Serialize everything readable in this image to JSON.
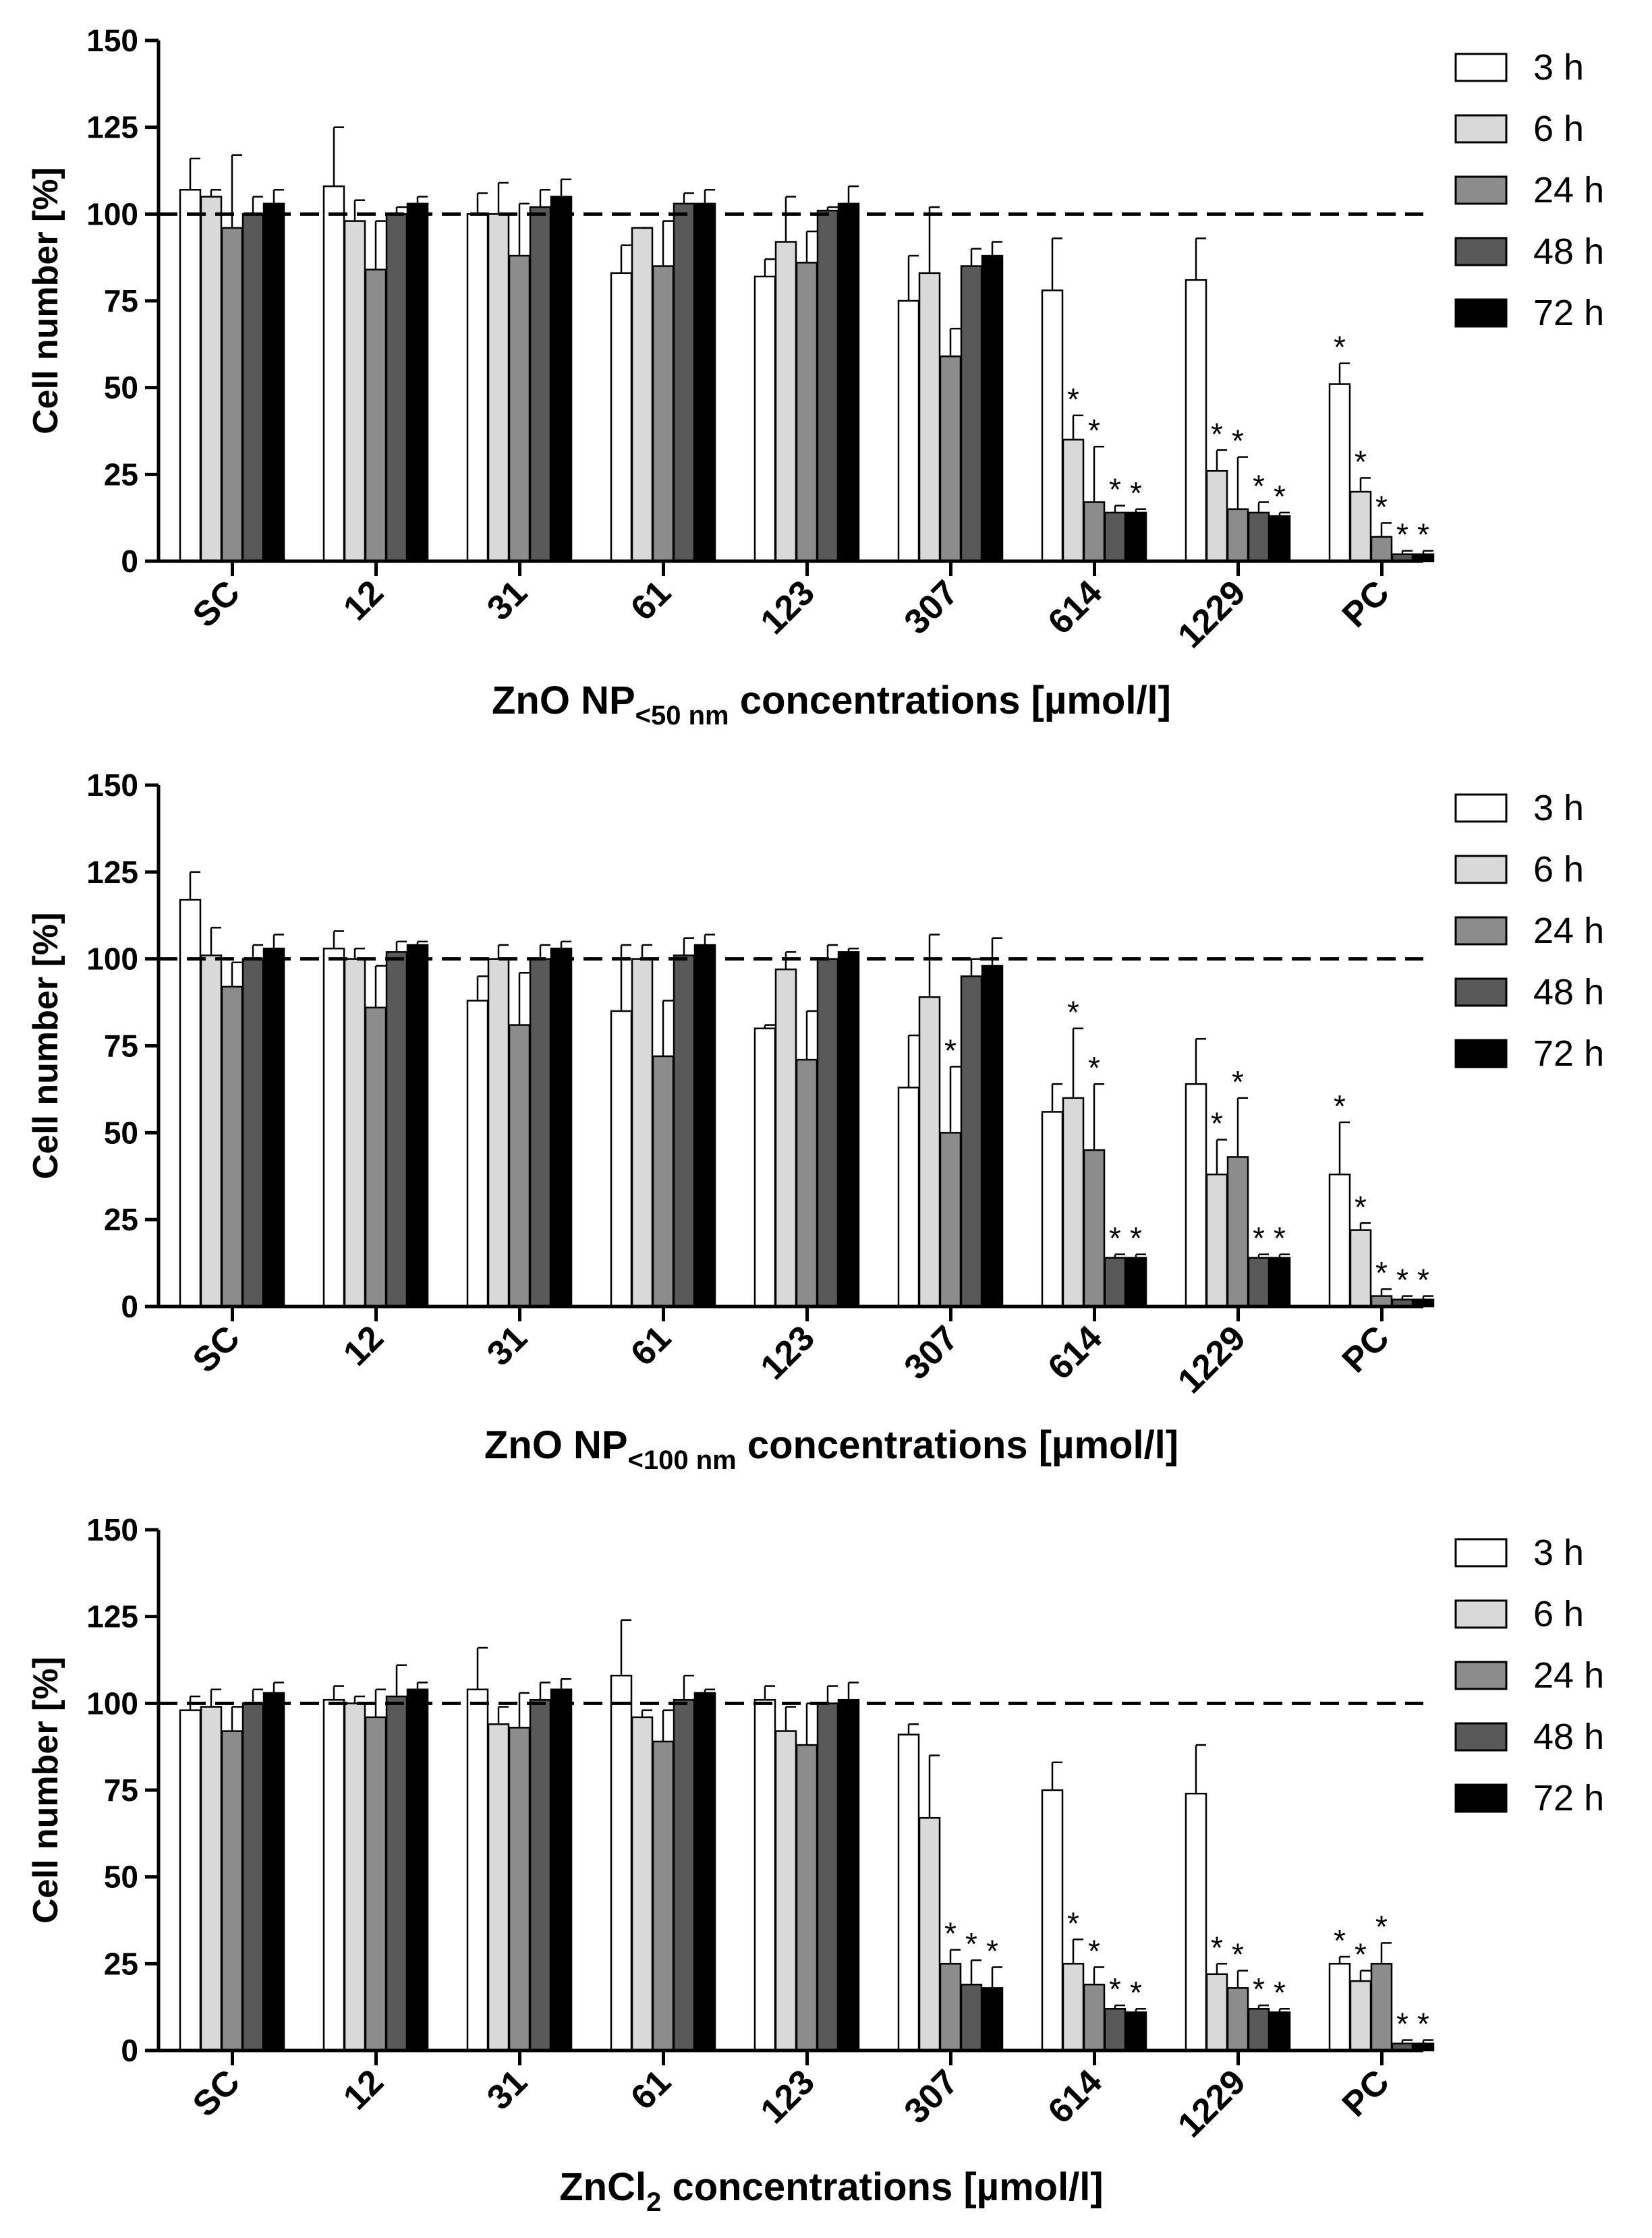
{
  "legend": [
    "3 h",
    "6 h",
    "24 h",
    "48 h",
    "72 h"
  ],
  "colors": [
    "#ffffff",
    "#d9d9d9",
    "#8c8c8c",
    "#595959",
    "#000000"
  ],
  "chart_data": [
    {
      "type": "bar",
      "ylabel": "Cell number [%]",
      "xlabel_main": "ZnO NP",
      "xlabel_sub": "<50 nm",
      "xlabel_rest": " concentrations [µmol/l]",
      "ylim": [
        0,
        150
      ],
      "yticks": [
        "0",
        "25",
        "50",
        "75",
        "100",
        "125",
        "150"
      ],
      "reference_line": 100,
      "categories": [
        "SC",
        "12",
        "31",
        "61",
        "123",
        "307",
        "614",
        "1229",
        "PC"
      ],
      "series": [
        {
          "name": "3 h",
          "values": [
            107,
            108,
            100,
            83,
            82,
            75,
            78,
            81,
            51
          ],
          "errors": [
            9,
            17,
            6,
            8,
            5,
            13,
            15,
            12,
            6
          ],
          "sig": [
            false,
            false,
            false,
            false,
            false,
            false,
            false,
            false,
            true
          ]
        },
        {
          "name": "6 h",
          "values": [
            105,
            98,
            100,
            96,
            92,
            83,
            35,
            26,
            20
          ],
          "errors": [
            2,
            6,
            9,
            0,
            13,
            19,
            7,
            6,
            4
          ],
          "sig": [
            false,
            false,
            false,
            false,
            false,
            false,
            true,
            true,
            true
          ]
        },
        {
          "name": "24 h",
          "values": [
            96,
            84,
            88,
            85,
            86,
            59,
            17,
            15,
            7
          ],
          "errors": [
            21,
            14,
            15,
            13,
            9,
            8,
            16,
            15,
            4
          ],
          "sig": [
            false,
            false,
            false,
            false,
            false,
            false,
            true,
            true,
            true
          ]
        },
        {
          "name": "48 h",
          "values": [
            100,
            100,
            102,
            103,
            101,
            85,
            14,
            14,
            2
          ],
          "errors": [
            5,
            2,
            5,
            3,
            1,
            5,
            2,
            3,
            1
          ],
          "sig": [
            false,
            false,
            false,
            false,
            false,
            false,
            true,
            true,
            true
          ]
        },
        {
          "name": "72 h",
          "values": [
            103,
            103,
            105,
            103,
            103,
            88,
            14,
            13,
            2
          ],
          "errors": [
            4,
            2,
            5,
            4,
            5,
            4,
            1,
            1,
            1
          ],
          "sig": [
            false,
            false,
            false,
            false,
            false,
            false,
            true,
            true,
            true
          ]
        }
      ]
    },
    {
      "type": "bar",
      "ylabel": "Cell number [%]",
      "xlabel_main": "ZnO NP",
      "xlabel_sub": "<100 nm",
      "xlabel_rest": " concentrations [µmol/l]",
      "ylim": [
        0,
        150
      ],
      "yticks": [
        "0",
        "25",
        "50",
        "75",
        "100",
        "125",
        "150"
      ],
      "reference_line": 100,
      "categories": [
        "SC",
        "12",
        "31",
        "61",
        "123",
        "307",
        "614",
        "1229",
        "PC"
      ],
      "series": [
        {
          "name": "3 h",
          "values": [
            117,
            103,
            88,
            85,
            80,
            63,
            56,
            64,
            38
          ],
          "errors": [
            8,
            5,
            7,
            19,
            1,
            15,
            8,
            13,
            15
          ],
          "sig": [
            false,
            false,
            false,
            false,
            false,
            false,
            false,
            false,
            true
          ]
        },
        {
          "name": "6 h",
          "values": [
            101,
            100,
            100,
            100,
            97,
            89,
            60,
            38,
            22
          ],
          "errors": [
            8,
            3,
            4,
            4,
            5,
            18,
            20,
            10,
            2
          ],
          "sig": [
            false,
            false,
            false,
            false,
            false,
            false,
            true,
            true,
            true
          ]
        },
        {
          "name": "24 h",
          "values": [
            92,
            86,
            81,
            72,
            71,
            50,
            45,
            43,
            3
          ],
          "errors": [
            7,
            12,
            15,
            16,
            14,
            19,
            19,
            17,
            2
          ],
          "sig": [
            false,
            false,
            false,
            false,
            false,
            true,
            true,
            true,
            true
          ]
        },
        {
          "name": "48 h",
          "values": [
            100,
            102,
            100,
            101,
            100,
            95,
            14,
            14,
            2
          ],
          "errors": [
            4,
            3,
            4,
            5,
            4,
            5,
            1,
            1,
            1
          ],
          "sig": [
            false,
            false,
            false,
            false,
            false,
            false,
            true,
            true,
            true
          ]
        },
        {
          "name": "72 h",
          "values": [
            103,
            104,
            103,
            104,
            102,
            98,
            14,
            14,
            2
          ],
          "errors": [
            4,
            1,
            2,
            3,
            1,
            8,
            1,
            1,
            1
          ],
          "sig": [
            false,
            false,
            false,
            false,
            false,
            false,
            true,
            true,
            true
          ]
        }
      ]
    },
    {
      "type": "bar",
      "ylabel": "Cell number [%]",
      "xlabel_main": "ZnCl",
      "xlabel_sub": "2",
      "xlabel_rest": " concentrations [µmol/l]",
      "ylim": [
        0,
        150
      ],
      "yticks": [
        "0",
        "25",
        "50",
        "75",
        "100",
        "125",
        "150"
      ],
      "reference_line": 100,
      "categories": [
        "SC",
        "12",
        "31",
        "61",
        "123",
        "307",
        "614",
        "1229",
        "PC"
      ],
      "series": [
        {
          "name": "3 h",
          "values": [
            98,
            101,
            104,
            108,
            101,
            91,
            75,
            74,
            25
          ],
          "errors": [
            4,
            4,
            12,
            16,
            4,
            3,
            8,
            14,
            2
          ],
          "sig": [
            false,
            false,
            false,
            false,
            false,
            false,
            false,
            false,
            true
          ]
        },
        {
          "name": "6 h",
          "values": [
            99,
            100,
            94,
            96,
            92,
            67,
            25,
            22,
            20
          ],
          "errors": [
            5,
            2,
            5,
            2,
            7,
            18,
            7,
            3,
            3
          ],
          "sig": [
            false,
            false,
            false,
            false,
            false,
            false,
            true,
            true,
            true
          ]
        },
        {
          "name": "24 h",
          "values": [
            92,
            96,
            93,
            89,
            88,
            25,
            19,
            18,
            25
          ],
          "errors": [
            7,
            8,
            10,
            9,
            12,
            4,
            5,
            5,
            6
          ],
          "sig": [
            false,
            false,
            false,
            false,
            false,
            true,
            true,
            true,
            true
          ]
        },
        {
          "name": "48 h",
          "values": [
            100,
            102,
            101,
            101,
            100,
            19,
            12,
            12,
            2
          ],
          "errors": [
            4,
            9,
            5,
            7,
            5,
            7,
            1,
            1,
            1
          ],
          "sig": [
            false,
            false,
            false,
            false,
            false,
            true,
            true,
            true,
            true
          ]
        },
        {
          "name": "72 h",
          "values": [
            103,
            104,
            104,
            103,
            101,
            18,
            11,
            11,
            2
          ],
          "errors": [
            3,
            2,
            3,
            1,
            5,
            6,
            1,
            1,
            1
          ],
          "sig": [
            false,
            false,
            false,
            false,
            false,
            true,
            true,
            true,
            true
          ]
        }
      ]
    }
  ]
}
